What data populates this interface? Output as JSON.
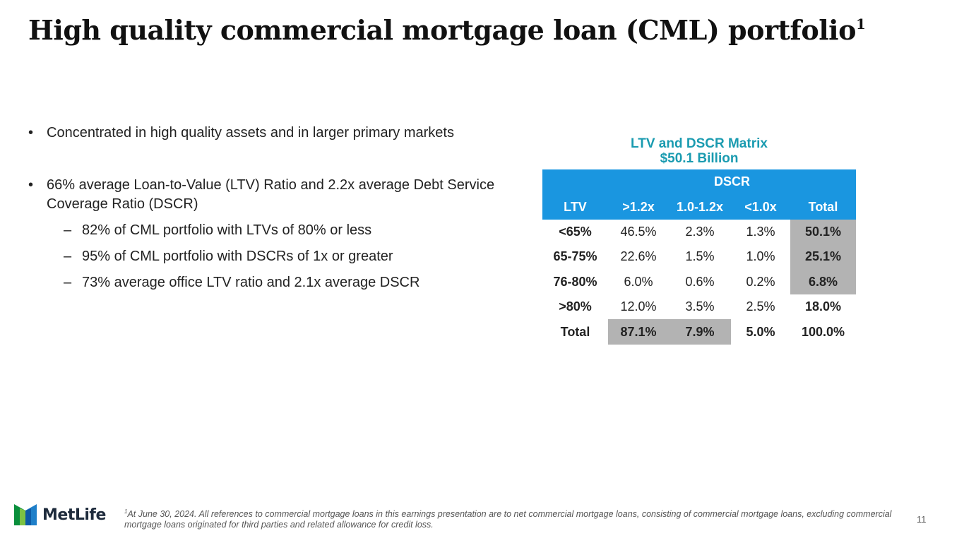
{
  "slide": {
    "title": "High quality commercial mortgage loan (CML) portfolio",
    "title_sup": "1",
    "bullet_char": "•",
    "dash_char": "–",
    "bullets": [
      "Concentrated in high quality assets and in larger primary markets",
      "66% average Loan-to-Value (LTV) Ratio and 2.2x average Debt Service Coverage Ratio (DSCR)"
    ],
    "sub_bullets": [
      "82% of CML portfolio with LTVs of 80% or less",
      "95% of CML portfolio with DSCRs of 1x or greater",
      "73% average office LTV ratio and 2.1x average DSCR"
    ]
  },
  "matrix": {
    "title_line1": "LTV and DSCR Matrix",
    "title_line2": "$50.1 Billion",
    "group_header": "DSCR",
    "headers": [
      "LTV",
      ">1.2x",
      "1.0-1.2x",
      "<1.0x",
      "Total"
    ],
    "rows": [
      [
        "<65%",
        "46.5%",
        "2.3%",
        "1.3%",
        "50.1%"
      ],
      [
        "65-75%",
        "22.6%",
        "1.5%",
        "1.0%",
        "25.1%"
      ],
      [
        "76-80%",
        "6.0%",
        "0.6%",
        "0.2%",
        "6.8%"
      ],
      [
        ">80%",
        "12.0%",
        "3.5%",
        "2.5%",
        "18.0%"
      ],
      [
        "Total",
        "87.1%",
        "7.9%",
        "5.0%",
        "100.0%"
      ]
    ]
  },
  "footer": {
    "logo_text": "MetLife",
    "footnote_sup": "1",
    "footnote": "At June 30, 2024. All references to commercial mortgage loans in this earnings presentation are to net commercial mortgage loans, consisting of commercial mortgage loans, excluding commercial mortgage loans originated for third parties and related allowance for credit loss.",
    "page_number": "11"
  },
  "colors": {
    "header_blue": "#1a96e0",
    "title_teal": "#1a9bb0",
    "highlight_gray": "#b3b3b3"
  }
}
